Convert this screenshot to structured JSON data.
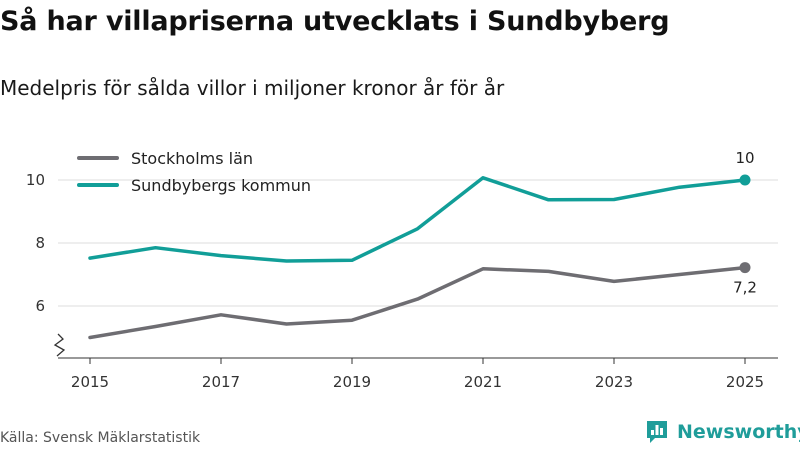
{
  "title": "Så har villapriserna utvecklats i Sundbyberg",
  "subtitle": "Medelpris för sålda villor i miljoner kronor år för år",
  "source": "Källa: Svensk Mäklarstatistik",
  "brand": {
    "name": "Newsworthy",
    "icon": "bar-chart-logo-icon",
    "color": "#1f9d9a"
  },
  "chart_data": {
    "type": "line",
    "x": [
      2015,
      2016,
      2017,
      2018,
      2019,
      2020,
      2021,
      2022,
      2023,
      2024,
      2025
    ],
    "x_ticks": [
      "2015",
      "2017",
      "2019",
      "2021",
      "2023",
      "2025"
    ],
    "y_ticks": [
      "6",
      "8",
      "10"
    ],
    "ylim": [
      4.7,
      11.2
    ],
    "y_axis_break": true,
    "grid": true,
    "legend_position": "top-left",
    "series": [
      {
        "name": "Stockholms län",
        "color": "#6e6d72",
        "values": [
          5.0,
          5.35,
          5.72,
          5.43,
          5.55,
          6.22,
          7.18,
          7.1,
          6.78,
          7.0,
          7.22
        ],
        "end_label": "7,2"
      },
      {
        "name": "Sundbybergs kommun",
        "color": "#119e98",
        "values": [
          7.52,
          7.85,
          7.6,
          7.43,
          7.45,
          8.45,
          10.07,
          9.37,
          9.38,
          9.77,
          10.0
        ],
        "end_label": "10"
      }
    ]
  }
}
